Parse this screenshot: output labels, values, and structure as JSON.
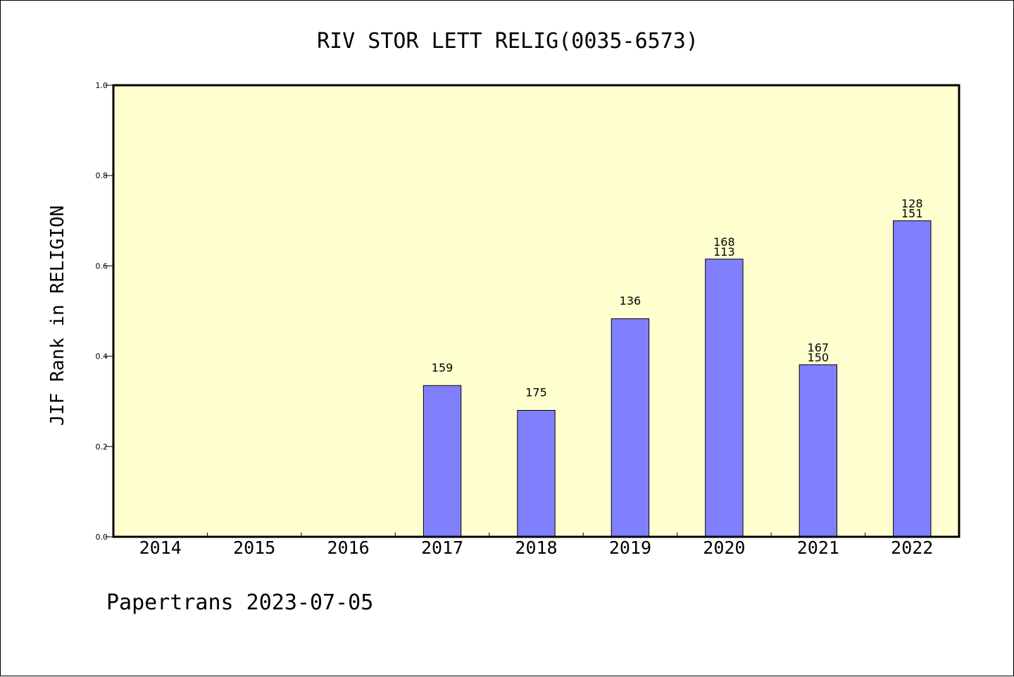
{
  "chart_data": {
    "type": "bar",
    "title": "RIV STOR LETT RELIG(0035-6573)",
    "xlabel": "",
    "ylabel": "JIF Rank in RELIGION",
    "ylim": [
      0,
      1.0
    ],
    "yticks": [
      "0.0",
      "0.2",
      "0.4",
      "0.6",
      "0.8",
      "1.0"
    ],
    "categories": [
      "2014",
      "2015",
      "2016",
      "2017",
      "2018",
      "2019",
      "2020",
      "2021",
      "2022"
    ],
    "values": [
      null,
      null,
      null,
      0.335,
      0.28,
      0.483,
      0.615,
      0.381,
      0.7
    ],
    "data_labels": [
      [],
      [],
      [],
      [
        "159"
      ],
      [
        "175"
      ],
      [
        "136"
      ],
      [
        "168",
        "113"
      ],
      [
        "167",
        "150"
      ],
      [
        "128",
        "151"
      ]
    ],
    "grid": false,
    "background_color": "#ffffd0",
    "bar_color": "#8080ff"
  },
  "footer": {
    "text": "Papertrans 2023-07-05"
  }
}
